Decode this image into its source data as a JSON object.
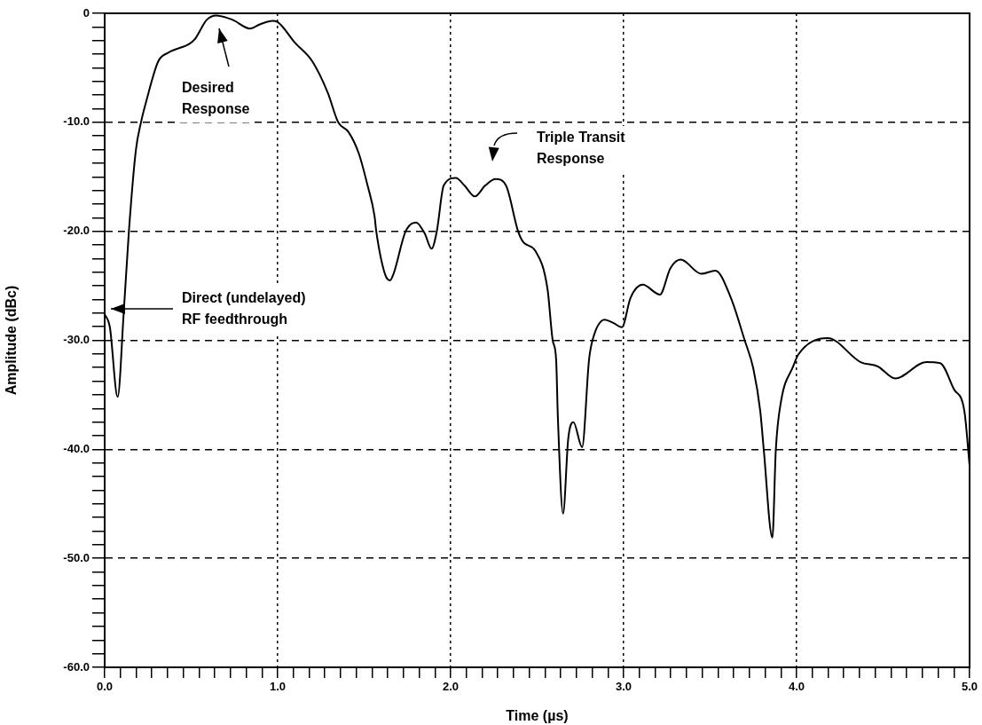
{
  "chart_data": {
    "type": "line",
    "xlabel": "Time (µs)",
    "ylabel": "Amplitude (dBc)",
    "color": "#000000",
    "marker": "none",
    "grid": true,
    "x": [
      0,
      0.03,
      0.075,
      0.11,
      0.14,
      0.18,
      0.21,
      0.24,
      0.31,
      0.37,
      0.49,
      0.52,
      0.59,
      0.645,
      0.74,
      0.84,
      0.9,
      0.97,
      1.0,
      1.1,
      1.2,
      1.29,
      1.35,
      1.41,
      1.47,
      1.52,
      1.56,
      1.57,
      1.62,
      1.65,
      1.67,
      1.74,
      1.8,
      1.85,
      1.89,
      1.92,
      1.96,
      2.03,
      2.08,
      2.14,
      2.2,
      2.26,
      2.32,
      2.39,
      2.42,
      2.49,
      2.56,
      2.59,
      2.61,
      2.62,
      2.65,
      2.68,
      2.71,
      2.76,
      2.8,
      2.82,
      2.89,
      2.94,
      2.99,
      3.04,
      3.11,
      3.21,
      3.27,
      3.33,
      3.45,
      3.53,
      3.62,
      3.7,
      3.75,
      3.79,
      3.81,
      3.86,
      3.88,
      3.91,
      3.98,
      4.01,
      4.18,
      4.37,
      4.47,
      4.57,
      4.75,
      4.83,
      4.91,
      4.97,
      5.0
    ],
    "values": [
      -27.6,
      -28.8,
      -35.2,
      -27.5,
      -20,
      -12.6,
      -10,
      -8.1,
      -4.4,
      -3.6,
      -2.8,
      -2.4,
      -0.6,
      -0.2,
      -0.6,
      -1.4,
      -1.0,
      -0.7,
      -0.8,
      -2.7,
      -4.4,
      -7.3,
      -10,
      -10.9,
      -12.9,
      -15.8,
      -18.6,
      -20,
      -23.9,
      -24.5,
      -23.9,
      -20,
      -19.2,
      -20.2,
      -21.6,
      -20,
      -15.8,
      -15.1,
      -15.8,
      -16.8,
      -15.8,
      -15.2,
      -15.8,
      -20,
      -21,
      -21.8,
      -25.3,
      -30,
      -31.8,
      -37.1,
      -45.9,
      -39,
      -37.5,
      -39.8,
      -31.8,
      -30,
      -28.1,
      -28.4,
      -28.8,
      -26.1,
      -24.9,
      -25.8,
      -23.4,
      -22.6,
      -23.9,
      -23.6,
      -26.1,
      -30,
      -32.6,
      -36.5,
      -40,
      -48.1,
      -40,
      -35.6,
      -32.4,
      -31.3,
      -29.8,
      -32,
      -32.4,
      -33.5,
      -32,
      -32.1,
      -34.5,
      -36.5,
      -41.5
    ],
    "xlim": [
      0,
      5
    ],
    "ylim": [
      -60,
      0
    ],
    "xticks": [
      {
        "value": 0,
        "label": "0.0"
      },
      {
        "value": 0.091,
        "label": null
      },
      {
        "value": 0.182,
        "label": null
      },
      {
        "value": 0.273,
        "label": null
      },
      {
        "value": 0.364,
        "label": null
      },
      {
        "value": 0.455,
        "label": null
      },
      {
        "value": 0.545,
        "label": null
      },
      {
        "value": 0.636,
        "label": null
      },
      {
        "value": 0.727,
        "label": null
      },
      {
        "value": 0.818,
        "label": null
      },
      {
        "value": 0.909,
        "label": null
      },
      {
        "value": 1,
        "label": "1.0"
      },
      {
        "value": 1.091,
        "label": null
      },
      {
        "value": 1.182,
        "label": null
      },
      {
        "value": 1.273,
        "label": null
      },
      {
        "value": 1.364,
        "label": null
      },
      {
        "value": 1.455,
        "label": null
      },
      {
        "value": 1.545,
        "label": null
      },
      {
        "value": 1.636,
        "label": null
      },
      {
        "value": 1.727,
        "label": null
      },
      {
        "value": 1.818,
        "label": null
      },
      {
        "value": 1.909,
        "label": null
      },
      {
        "value": 2,
        "label": "2.0"
      },
      {
        "value": 2.091,
        "label": null
      },
      {
        "value": 2.182,
        "label": null
      },
      {
        "value": 2.273,
        "label": null
      },
      {
        "value": 2.364,
        "label": null
      },
      {
        "value": 2.455,
        "label": null
      },
      {
        "value": 2.545,
        "label": null
      },
      {
        "value": 2.636,
        "label": null
      },
      {
        "value": 2.727,
        "label": null
      },
      {
        "value": 2.818,
        "label": null
      },
      {
        "value": 2.909,
        "label": null
      },
      {
        "value": 3,
        "label": "3.0"
      },
      {
        "value": 3.091,
        "label": null
      },
      {
        "value": 3.182,
        "label": null
      },
      {
        "value": 3.273,
        "label": null
      },
      {
        "value": 3.364,
        "label": null
      },
      {
        "value": 3.455,
        "label": null
      },
      {
        "value": 3.545,
        "label": null
      },
      {
        "value": 3.636,
        "label": null
      },
      {
        "value": 3.727,
        "label": null
      },
      {
        "value": 3.818,
        "label": null
      },
      {
        "value": 3.909,
        "label": null
      },
      {
        "value": 4,
        "label": "4.0"
      },
      {
        "value": 4.091,
        "label": null
      },
      {
        "value": 4.182,
        "label": null
      },
      {
        "value": 4.273,
        "label": null
      },
      {
        "value": 4.364,
        "label": null
      },
      {
        "value": 4.455,
        "label": null
      },
      {
        "value": 4.545,
        "label": null
      },
      {
        "value": 4.636,
        "label": null
      },
      {
        "value": 4.727,
        "label": null
      },
      {
        "value": 4.818,
        "label": null
      },
      {
        "value": 4.909,
        "label": null
      },
      {
        "value": 5,
        "label": "5.0"
      }
    ],
    "yticks": [
      0,
      {
        "value": -1.25,
        "label": null
      },
      {
        "value": -2.5,
        "label": null
      },
      {
        "value": -3.75,
        "label": null
      },
      {
        "value": -5,
        "label": null
      },
      {
        "value": -6.25,
        "label": null
      },
      {
        "value": -7.5,
        "label": null
      },
      {
        "value": -8.75,
        "label": null
      },
      {
        "value": -10,
        "label": "-10.0"
      },
      {
        "value": -11.25,
        "label": null
      },
      {
        "value": -12.5,
        "label": null
      },
      {
        "value": -13.75,
        "label": null
      },
      {
        "value": -15,
        "label": null
      },
      {
        "value": -16.25,
        "label": null
      },
      {
        "value": -17.5,
        "label": null
      },
      {
        "value": -18.75,
        "label": null
      },
      {
        "value": -20,
        "label": "-20.0"
      },
      {
        "value": -21.25,
        "label": null
      },
      {
        "value": -22.5,
        "label": null
      },
      {
        "value": -23.75,
        "label": null
      },
      {
        "value": -25,
        "label": null
      },
      {
        "value": -26.25,
        "label": null
      },
      {
        "value": -27.5,
        "label": null
      },
      {
        "value": -28.75,
        "label": null
      },
      {
        "value": -30,
        "label": "-30.0"
      },
      {
        "value": -31.25,
        "label": null
      },
      {
        "value": -32.5,
        "label": null
      },
      {
        "value": -33.75,
        "label": null
      },
      {
        "value": -35,
        "label": null
      },
      {
        "value": -36.25,
        "label": null
      },
      {
        "value": -37.5,
        "label": null
      },
      {
        "value": -38.75,
        "label": null
      },
      {
        "value": -40,
        "label": "-40.0"
      },
      {
        "value": -41.25,
        "label": null
      },
      {
        "value": -42.5,
        "label": null
      },
      {
        "value": -43.75,
        "label": null
      },
      {
        "value": -45,
        "label": null
      },
      {
        "value": -46.25,
        "label": null
      },
      {
        "value": -47.5,
        "label": null
      },
      {
        "value": -48.75,
        "label": null
      },
      {
        "value": -50,
        "label": "-50.0"
      },
      {
        "value": -51.25,
        "label": null
      },
      {
        "value": -52.5,
        "label": null
      },
      {
        "value": -53.75,
        "label": null
      },
      {
        "value": -55,
        "label": null
      },
      {
        "value": -56.25,
        "label": null
      },
      {
        "value": -57.5,
        "label": null
      },
      {
        "value": -58.75,
        "label": null
      },
      {
        "value": -60,
        "label": "-60.0"
      }
    ],
    "annotations": [
      "Desired Response",
      "Triple Transit Response",
      "Direct (undelayed) RF feedthrough"
    ]
  }
}
